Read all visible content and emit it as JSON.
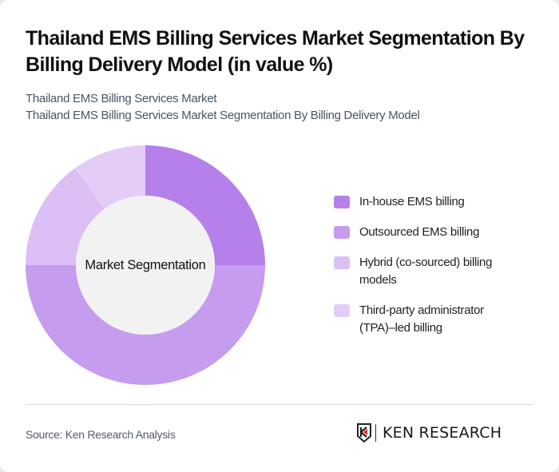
{
  "header": {
    "title": "Thailand EMS Billing Services Market Segmentation By Billing Delivery Model (in value %)",
    "subtitle_line1": "Thailand EMS Billing Services Market",
    "subtitle_line2": "Thailand EMS Billing Services Market Segmentation By Billing Delivery Model"
  },
  "chart": {
    "center_label": "Market Segmentation"
  },
  "legend": [
    {
      "label": "In-house EMS billing",
      "color": "#b580ea"
    },
    {
      "label": "Outsourced EMS billing",
      "color": "#c59cee"
    },
    {
      "label": "Hybrid (co-sourced) billing models",
      "color": "#dbbff5"
    },
    {
      "label": "Third-party administrator (TPA)–led billing",
      "color": "#e3cdf7"
    }
  ],
  "footer": {
    "source": "Source: Ken Research Analysis",
    "logo_text": "KEN RESEARCH"
  },
  "chart_data": {
    "type": "pie",
    "subtype": "donut",
    "title": "Thailand EMS Billing Services Market Segmentation By Billing Delivery Model (in value %)",
    "center_label": "Market Segmentation",
    "categories": [
      "In-house EMS billing",
      "Outsourced EMS billing",
      "Hybrid (co-sourced) billing models",
      "Third-party administrator (TPA)–led billing"
    ],
    "values": [
      25,
      50,
      15,
      10
    ],
    "colors": [
      "#b580ea",
      "#c59cee",
      "#dbbff5",
      "#e3cdf7"
    ],
    "legend_position": "right",
    "unit": "%"
  }
}
